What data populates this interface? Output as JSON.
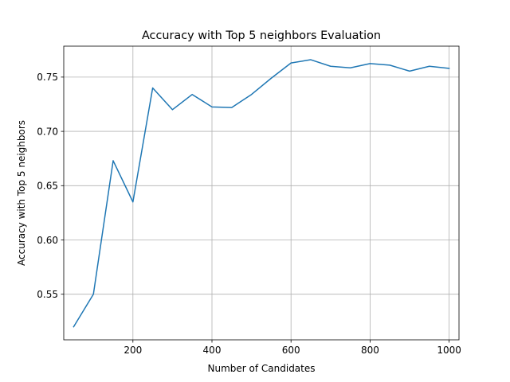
{
  "chart_data": {
    "type": "line",
    "title": "Accuracy with Top 5 neighbors Evaluation",
    "xlabel": "Number of Candidates",
    "ylabel": "Accuracy with Top 5 neighbors",
    "xlim": [
      25,
      1025
    ],
    "ylim": [
      0.508,
      0.7785
    ],
    "xticks": [
      200,
      400,
      600,
      800,
      1000
    ],
    "yticks": [
      0.55,
      0.6,
      0.65,
      0.7,
      0.75
    ],
    "ytick_labels": [
      "0.55",
      "0.60",
      "0.65",
      "0.70",
      "0.75"
    ],
    "grid": true,
    "series": [
      {
        "color": "#1f77b4",
        "x": [
          50,
          100,
          150,
          200,
          250,
          300,
          350,
          400,
          450,
          500,
          550,
          600,
          650,
          700,
          750,
          800,
          850,
          900,
          950,
          1000
        ],
        "values": [
          0.52,
          0.55,
          0.673,
          0.635,
          0.74,
          0.72,
          0.734,
          0.7225,
          0.722,
          0.734,
          0.749,
          0.763,
          0.766,
          0.76,
          0.7585,
          0.7625,
          0.761,
          0.7555,
          0.76,
          0.758
        ]
      }
    ]
  }
}
